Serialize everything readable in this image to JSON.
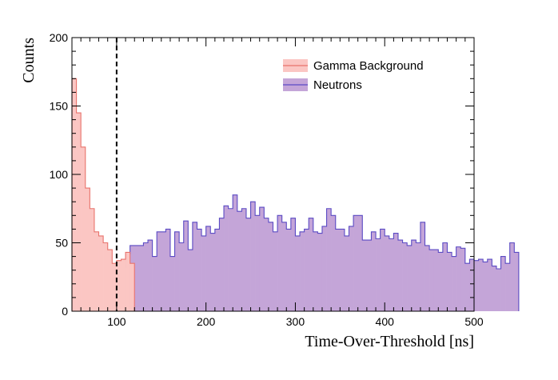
{
  "chart_data": {
    "type": "histogram",
    "title": "",
    "xlabel": "Time-Over-Threshold [ns]",
    "ylabel": "Counts",
    "xlim": [
      50,
      500
    ],
    "ylim": [
      0,
      200
    ],
    "xticks": [
      100,
      200,
      300,
      400,
      500
    ],
    "yticks": [
      0,
      50,
      100,
      150,
      200
    ],
    "grid": false,
    "legend_position": "top-right",
    "bin_width": 5,
    "cut_line": {
      "x": 100,
      "style": "dashed",
      "color": "#000000"
    },
    "series": [
      {
        "name": "Gamma Background",
        "line_color": "#e8736c",
        "fill_color": "#fbc6c3",
        "x_start": 50,
        "values": [
          170,
          145,
          120,
          90,
          75,
          58,
          55,
          50,
          45,
          35,
          37,
          38,
          43,
          35,
          0
        ]
      },
      {
        "name": "Neutrons",
        "line_color": "#5b4bc4",
        "fill_color": "#c4a5d8",
        "x_start": 100,
        "values": [
          35,
          32,
          42,
          48,
          48,
          48,
          50,
          52,
          40,
          58,
          58,
          60,
          40,
          58,
          50,
          66,
          45,
          65,
          60,
          55,
          62,
          57,
          60,
          68,
          77,
          75,
          85,
          73,
          75,
          68,
          80,
          70,
          76,
          68,
          65,
          58,
          70,
          65,
          60,
          68,
          55,
          58,
          60,
          68,
          58,
          57,
          62,
          75,
          70,
          60,
          60,
          55,
          62,
          70,
          70,
          52,
          52,
          58,
          53,
          60,
          55,
          53,
          57,
          52,
          50,
          48,
          52,
          50,
          65,
          48,
          45,
          45,
          43,
          50,
          43,
          40,
          47,
          46,
          35,
          38,
          37,
          38,
          36,
          38,
          33,
          31,
          40,
          35,
          50,
          43
        ]
      }
    ]
  }
}
